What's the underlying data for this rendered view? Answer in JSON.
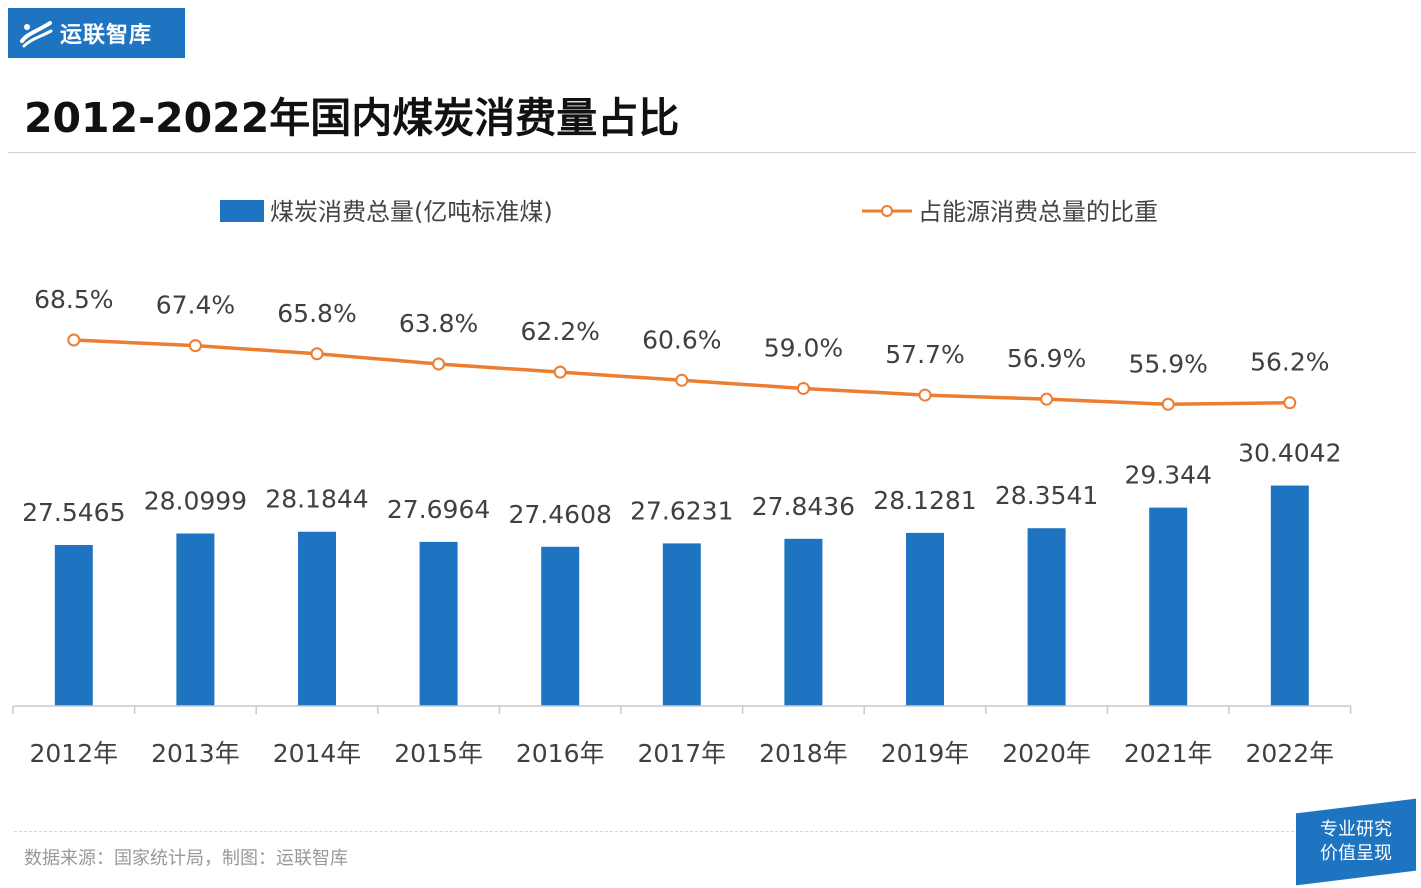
{
  "brand": {
    "name": "运联智库",
    "badge_line1": "专业研究",
    "badge_line2": "价值呈现"
  },
  "title": "2012-2022年国内煤炭消费量占比",
  "source": "数据来源：国家统计局，制图：运联智库",
  "colors": {
    "bar": "#1f74c2",
    "line": "#ed7d31",
    "brand": "#1f74c2"
  },
  "chart_data": {
    "type": "bar",
    "categories": [
      "2012年",
      "2013年",
      "2014年",
      "2015年",
      "2016年",
      "2017年",
      "2018年",
      "2019年",
      "2020年",
      "2021年",
      "2022年"
    ],
    "series": [
      {
        "name": "煤炭消费总量(亿吨标准煤)",
        "type": "bar",
        "axis": "left",
        "values": [
          27.5465,
          28.0999,
          28.1844,
          27.6964,
          27.4608,
          27.6231,
          27.8436,
          28.1281,
          28.3541,
          29.344,
          30.4042
        ],
        "labels": [
          "27.5465",
          "28.0999",
          "28.1844",
          "27.6964",
          "27.4608",
          "27.6231",
          "27.8436",
          "28.1281",
          "28.3541",
          "29.344",
          "30.4042"
        ]
      },
      {
        "name": "占能源消费总量的比重",
        "type": "line",
        "axis": "right",
        "values": [
          68.5,
          67.4,
          65.8,
          63.8,
          62.2,
          60.6,
          59.0,
          57.7,
          56.9,
          55.9,
          56.2
        ],
        "labels": [
          "68.5%",
          "67.4%",
          "65.8%",
          "63.8%",
          "62.2%",
          "60.6%",
          "59.0%",
          "57.7%",
          "56.9%",
          "55.9%",
          "56.2%"
        ]
      }
    ],
    "legend": "top",
    "grid": false
  }
}
